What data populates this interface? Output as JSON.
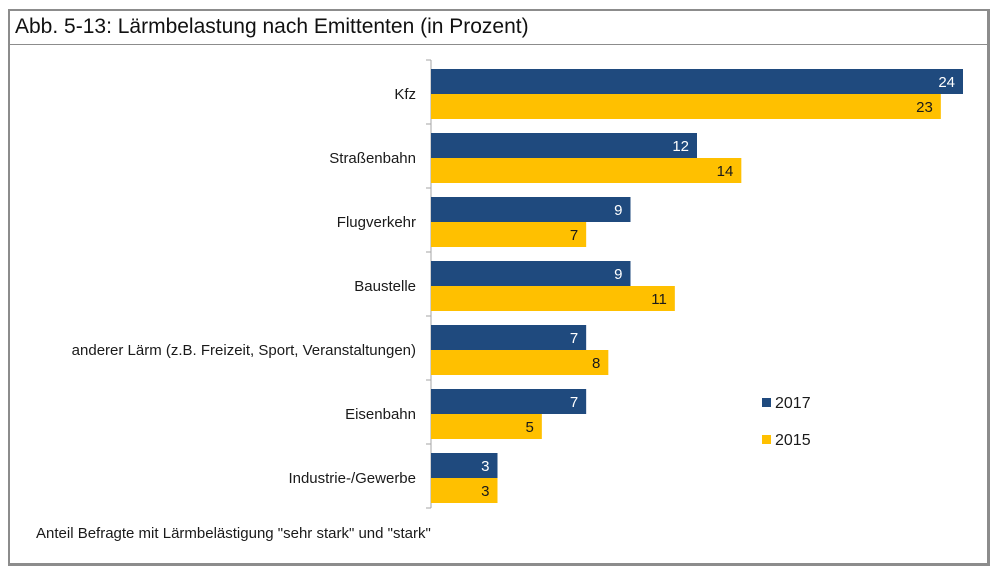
{
  "title": "Abb. 5-13:  Lärmbelastung nach Emittenten (in Prozent)",
  "note": "Anteil Befragte mit Lärmbelästigung \"sehr stark\" und \"stark\"",
  "colors": {
    "series_2017": "#1f4a7e",
    "series_2015": "#ffc000",
    "label_2017": "#ffffff",
    "label_2015": "#1a1a1a",
    "axis": "#a6a6a6",
    "frame": "#8c8c8c"
  },
  "chart_data": {
    "type": "bar",
    "orientation": "horizontal",
    "title": "Abb. 5-13:  Lärmbelastung nach Emittenten (in Prozent)",
    "xlabel": "",
    "ylabel": "",
    "categories": [
      "Kfz",
      "Straßenbahn",
      "Flugverkehr",
      "Baustelle",
      "anderer Lärm (z.B. Freizeit, Sport, Veranstaltungen)",
      "Eisenbahn",
      "Industrie-/Gewerbe"
    ],
    "series": [
      {
        "name": "2017",
        "values": [
          24,
          12,
          9,
          9,
          7,
          7,
          3
        ]
      },
      {
        "name": "2015",
        "values": [
          23,
          14,
          7,
          11,
          8,
          5,
          3
        ]
      }
    ],
    "xlim": [
      0,
      24
    ],
    "grid": false,
    "data_labels": true,
    "legend": {
      "position": "right",
      "entries": [
        "2017",
        "2015"
      ]
    }
  }
}
